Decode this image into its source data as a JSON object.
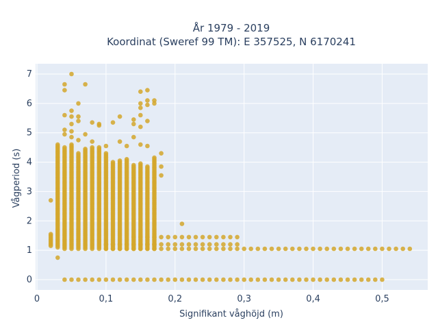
{
  "chart_data": {
    "type": "scatter",
    "title_line1": "År 1979 - 2019",
    "title_line2": "Koordinat (Sweref 99 TM): E 357525, N 6170241",
    "xlabel": "Signifikant våghöjd (m)",
    "ylabel": "Vågperiod (s)",
    "xlim": [
      -0.002,
      0.566
    ],
    "ylim": [
      -0.35,
      7.35
    ],
    "x_ticks": [
      0,
      0.1,
      0.2,
      0.3,
      0.4,
      0.5
    ],
    "x_tick_labels": [
      "0",
      "0,1",
      "0,2",
      "0,3",
      "0,4",
      "0,5"
    ],
    "y_ticks": [
      0,
      1,
      2,
      3,
      4,
      5,
      6,
      7
    ],
    "y_tick_labels": [
      "0",
      "1",
      "2",
      "3",
      "4",
      "5",
      "6",
      "7"
    ],
    "grid": true,
    "legend": "none",
    "colors": {
      "marker": "#d4a72c",
      "plot_bg": "#e5ecf6",
      "grid": "#ffffff"
    },
    "series": [
      {
        "x_step": 0.01,
        "columns": [
          [
            0.02,
            1.15,
            1.55
          ],
          [
            0.03,
            1.1,
            4.6
          ],
          [
            0.04,
            1.05,
            4.5
          ],
          [
            0.05,
            1.05,
            4.6
          ],
          [
            0.06,
            1.05,
            4.3
          ],
          [
            0.07,
            1.05,
            4.45
          ],
          [
            0.08,
            1.05,
            4.5
          ],
          [
            0.09,
            1.05,
            4.5
          ],
          [
            0.1,
            1.05,
            4.3
          ],
          [
            0.11,
            1.05,
            4.0
          ],
          [
            0.12,
            1.05,
            4.05
          ],
          [
            0.13,
            1.05,
            4.1
          ],
          [
            0.14,
            1.05,
            3.9
          ],
          [
            0.15,
            1.05,
            3.95
          ],
          [
            0.16,
            1.05,
            3.85
          ],
          [
            0.17,
            1.05,
            4.15
          ]
        ],
        "bands": [
          {
            "y": 1.05,
            "x_from": 0.1,
            "x_to": 0.54
          },
          {
            "y": 1.2,
            "x_from": 0.1,
            "x_to": 0.29
          },
          {
            "y": 1.45,
            "x_from": 0.14,
            "x_to": 0.29
          },
          {
            "y": 0.0,
            "x_from": 0.04,
            "x_to": 0.5
          }
        ],
        "points": [
          [
            0.02,
            2.7
          ],
          [
            0.03,
            0.75
          ],
          [
            0.04,
            6.45
          ],
          [
            0.04,
            6.65
          ],
          [
            0.04,
            5.6
          ],
          [
            0.04,
            5.1
          ],
          [
            0.04,
            4.95
          ],
          [
            0.05,
            7.0
          ],
          [
            0.05,
            5.75
          ],
          [
            0.05,
            5.55
          ],
          [
            0.05,
            5.3
          ],
          [
            0.05,
            5.05
          ],
          [
            0.05,
            4.85
          ],
          [
            0.06,
            6.0
          ],
          [
            0.06,
            5.55
          ],
          [
            0.06,
            5.4
          ],
          [
            0.06,
            4.75
          ],
          [
            0.07,
            6.65
          ],
          [
            0.07,
            4.95
          ],
          [
            0.08,
            5.35
          ],
          [
            0.08,
            4.7
          ],
          [
            0.09,
            5.3
          ],
          [
            0.09,
            5.25
          ],
          [
            0.1,
            4.55
          ],
          [
            0.11,
            5.35
          ],
          [
            0.12,
            5.55
          ],
          [
            0.12,
            4.7
          ],
          [
            0.13,
            4.55
          ],
          [
            0.14,
            5.45
          ],
          [
            0.14,
            5.3
          ],
          [
            0.14,
            4.85
          ],
          [
            0.15,
            6.4
          ],
          [
            0.15,
            6.0
          ],
          [
            0.15,
            5.85
          ],
          [
            0.15,
            5.6
          ],
          [
            0.15,
            5.2
          ],
          [
            0.15,
            4.6
          ],
          [
            0.16,
            6.45
          ],
          [
            0.16,
            6.1
          ],
          [
            0.16,
            5.95
          ],
          [
            0.16,
            5.4
          ],
          [
            0.16,
            4.55
          ],
          [
            0.17,
            6.1
          ],
          [
            0.17,
            6.0
          ],
          [
            0.18,
            4.3
          ],
          [
            0.18,
            3.85
          ],
          [
            0.18,
            3.55
          ],
          [
            0.21,
            1.9
          ]
        ]
      }
    ]
  }
}
